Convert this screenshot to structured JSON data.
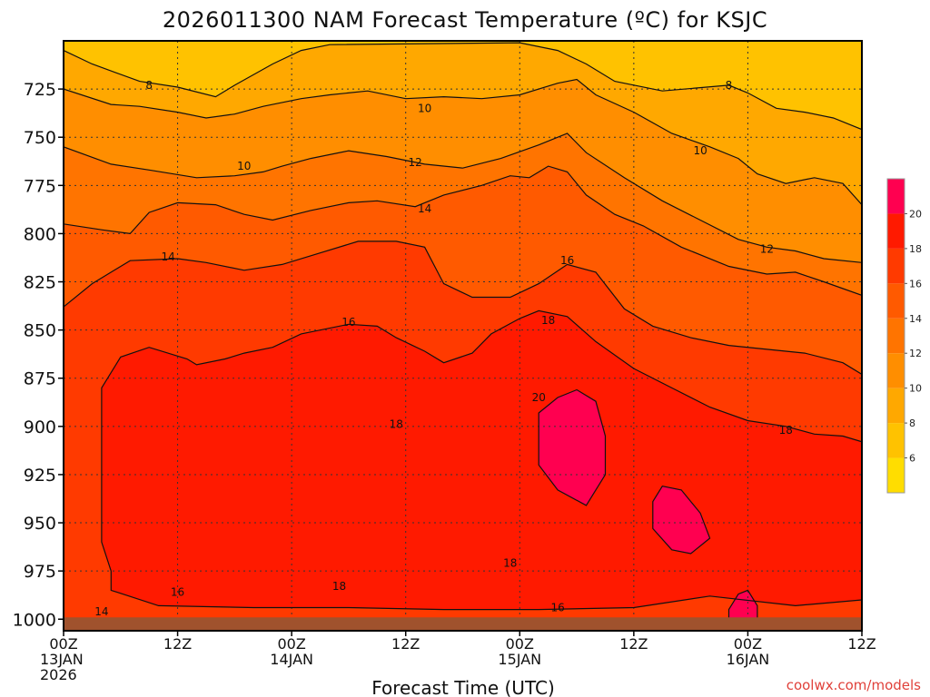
{
  "chart_data": {
    "type": "heatmap",
    "title": "2026011300 NAM Forecast Temperature (ºC) for KSJC",
    "xlabel": "Forecast Time (UTC)",
    "ylabel": "",
    "credit": "coolwx.com/models",
    "x_ticks": [
      {
        "hour": 0,
        "lines": [
          "00Z",
          "13JAN",
          "2026"
        ]
      },
      {
        "hour": 12,
        "lines": [
          "12Z"
        ]
      },
      {
        "hour": 24,
        "lines": [
          "00Z",
          "14JAN"
        ]
      },
      {
        "hour": 36,
        "lines": [
          "12Z"
        ]
      },
      {
        "hour": 48,
        "lines": [
          "00Z",
          "15JAN"
        ]
      },
      {
        "hour": 60,
        "lines": [
          "12Z"
        ]
      },
      {
        "hour": 72,
        "lines": [
          "00Z",
          "16JAN"
        ]
      },
      {
        "hour": 84,
        "lines": [
          "12Z"
        ]
      }
    ],
    "xlim": [
      0,
      84
    ],
    "y_ticks": [
      725,
      750,
      775,
      800,
      825,
      850,
      875,
      900,
      925,
      950,
      975,
      1000
    ],
    "ylim": [
      1006,
      700
    ],
    "ground_pressure_hpa": 1000,
    "contour_interval_c": 2,
    "colorbar": {
      "levels": [
        6,
        8,
        10,
        12,
        14,
        16,
        18,
        20
      ],
      "labels": [
        "6",
        "8",
        "10",
        "12",
        "14",
        "16",
        "18",
        "20"
      ],
      "colors": [
        "#ffdd00",
        "#ffc200",
        "#ffa800",
        "#ff8e00",
        "#ff7400",
        "#ff5a00",
        "#ff3a00",
        "#ff1a00",
        "#ff0050"
      ]
    },
    "contours": [
      {
        "level": 8,
        "points": [
          [
            0,
            705
          ],
          [
            3,
            712
          ],
          [
            8,
            721
          ],
          [
            12,
            724
          ],
          [
            16,
            729
          ],
          [
            18,
            723
          ],
          [
            22,
            712
          ],
          [
            25,
            705
          ],
          [
            28,
            702
          ],
          [
            48,
            701
          ],
          [
            52,
            705
          ],
          [
            55,
            712
          ],
          [
            58,
            721
          ],
          [
            63,
            726
          ],
          [
            70,
            723
          ],
          [
            72,
            727
          ],
          [
            75,
            735
          ],
          [
            78,
            737
          ],
          [
            81,
            740
          ],
          [
            84,
            746
          ]
        ]
      },
      {
        "level": 10,
        "points": [
          [
            0,
            725
          ],
          [
            5,
            733
          ],
          [
            8,
            734
          ],
          [
            12,
            737
          ],
          [
            15,
            740
          ],
          [
            18,
            738
          ],
          [
            21,
            734
          ],
          [
            25,
            730
          ],
          [
            28,
            728
          ],
          [
            32,
            726
          ],
          [
            36,
            730
          ],
          [
            40,
            729
          ],
          [
            44,
            730
          ],
          [
            48,
            728
          ],
          [
            52,
            722
          ],
          [
            54,
            720
          ],
          [
            56,
            728
          ],
          [
            60,
            737
          ],
          [
            64,
            748
          ],
          [
            68,
            755
          ],
          [
            71,
            761
          ],
          [
            73,
            769
          ],
          [
            76,
            774
          ],
          [
            79,
            771
          ],
          [
            82,
            774
          ],
          [
            84,
            785
          ]
        ]
      },
      {
        "level": 12,
        "points": [
          [
            0,
            755
          ],
          [
            5,
            764
          ],
          [
            9,
            767
          ],
          [
            14,
            771
          ],
          [
            18,
            770
          ],
          [
            21,
            768
          ],
          [
            23,
            765
          ],
          [
            26,
            761
          ],
          [
            30,
            757
          ],
          [
            34,
            760
          ],
          [
            38,
            764
          ],
          [
            42,
            766
          ],
          [
            46,
            761
          ],
          [
            50,
            754
          ],
          [
            53,
            748
          ],
          [
            55,
            758
          ],
          [
            59,
            771
          ],
          [
            63,
            783
          ],
          [
            67,
            793
          ],
          [
            71,
            803
          ],
          [
            74,
            807
          ],
          [
            77,
            809
          ],
          [
            80,
            813
          ],
          [
            84,
            815
          ]
        ]
      },
      {
        "level": 14,
        "points": [
          [
            0,
            795
          ],
          [
            4,
            798
          ],
          [
            7,
            800
          ],
          [
            9,
            789
          ],
          [
            12,
            784
          ],
          [
            16,
            785
          ],
          [
            19,
            790
          ],
          [
            22,
            793
          ],
          [
            26,
            788
          ],
          [
            30,
            784
          ],
          [
            33,
            783
          ],
          [
            37,
            786
          ],
          [
            40,
            780
          ],
          [
            44,
            775
          ],
          [
            47,
            770
          ],
          [
            49,
            771
          ],
          [
            51,
            765
          ],
          [
            53,
            768
          ],
          [
            55,
            780
          ],
          [
            58,
            790
          ],
          [
            61,
            796
          ],
          [
            65,
            807
          ],
          [
            70,
            817
          ],
          [
            74,
            821
          ],
          [
            77,
            820
          ],
          [
            80,
            825
          ],
          [
            84,
            832
          ]
        ]
      },
      {
        "level": 16,
        "points": [
          [
            0,
            838
          ],
          [
            3,
            826
          ],
          [
            7,
            814
          ],
          [
            12,
            813
          ],
          [
            15,
            815
          ],
          [
            19,
            819
          ],
          [
            23,
            816
          ],
          [
            27,
            810
          ],
          [
            31,
            804
          ],
          [
            35,
            804
          ],
          [
            38,
            807
          ],
          [
            40,
            826
          ],
          [
            43,
            833
          ],
          [
            47,
            833
          ],
          [
            50,
            826
          ],
          [
            53,
            816
          ],
          [
            56,
            820
          ],
          [
            59,
            839
          ],
          [
            62,
            848
          ],
          [
            66,
            854
          ],
          [
            70,
            858
          ],
          [
            74,
            860
          ],
          [
            78,
            862
          ],
          [
            82,
            867
          ],
          [
            84,
            873
          ]
        ]
      },
      {
        "level": 18,
        "points": [
          [
            5,
            975
          ],
          [
            4,
            960
          ],
          [
            4,
            880
          ],
          [
            6,
            864
          ],
          [
            9,
            859
          ],
          [
            13,
            865
          ],
          [
            14,
            868
          ],
          [
            17,
            865
          ],
          [
            19,
            862
          ],
          [
            22,
            859
          ],
          [
            25,
            852
          ],
          [
            30,
            847
          ],
          [
            33,
            848
          ],
          [
            35,
            854
          ],
          [
            38,
            861
          ],
          [
            40,
            867
          ],
          [
            43,
            862
          ],
          [
            45,
            852
          ],
          [
            48,
            844
          ],
          [
            50,
            840
          ],
          [
            53,
            843
          ],
          [
            56,
            856
          ],
          [
            60,
            870
          ],
          [
            64,
            880
          ],
          [
            68,
            890
          ],
          [
            72,
            897
          ],
          [
            76,
            900
          ],
          [
            79,
            904
          ],
          [
            82,
            905
          ],
          [
            84,
            908
          ],
          [
            84,
            990
          ],
          [
            77,
            993
          ],
          [
            68,
            988
          ],
          [
            60,
            994
          ],
          [
            50,
            995
          ],
          [
            40,
            995
          ],
          [
            30,
            994
          ],
          [
            20,
            994
          ],
          [
            10,
            993
          ],
          [
            5,
            985
          ],
          [
            5,
            975
          ]
        ]
      },
      {
        "level": 20,
        "points": [
          [
            50,
            893
          ],
          [
            52,
            885
          ],
          [
            54,
            881
          ],
          [
            56,
            887
          ],
          [
            57,
            905
          ],
          [
            57,
            925
          ],
          [
            55,
            941
          ],
          [
            52,
            933
          ],
          [
            50,
            920
          ],
          [
            50,
            893
          ]
        ]
      },
      {
        "level": 20,
        "points": [
          [
            62,
            939
          ],
          [
            63,
            931
          ],
          [
            65,
            933
          ],
          [
            67,
            945
          ],
          [
            68,
            958
          ],
          [
            66,
            966
          ],
          [
            64,
            964
          ],
          [
            62,
            953
          ],
          [
            62,
            939
          ]
        ]
      },
      {
        "level": 20,
        "points": [
          [
            70,
            995
          ],
          [
            71,
            987
          ],
          [
            72,
            985
          ],
          [
            73,
            993
          ],
          [
            73,
            1003
          ],
          [
            70,
            1003
          ],
          [
            70,
            995
          ]
        ]
      }
    ],
    "contour_labels": [
      {
        "text": "8",
        "hour": 9,
        "hpa": 723
      },
      {
        "text": "8",
        "hour": 70,
        "hpa": 723
      },
      {
        "text": "10",
        "hour": 19,
        "hpa": 765
      },
      {
        "text": "10",
        "hour": 38,
        "hpa": 735
      },
      {
        "text": "10",
        "hour": 67,
        "hpa": 757
      },
      {
        "text": "12",
        "hour": 37,
        "hpa": 763
      },
      {
        "text": "12",
        "hour": 74,
        "hpa": 808
      },
      {
        "text": "14",
        "hour": 11,
        "hpa": 812
      },
      {
        "text": "14",
        "hour": 38,
        "hpa": 787
      },
      {
        "text": "14",
        "hour": 4,
        "hpa": 996
      },
      {
        "text": "16",
        "hour": 30,
        "hpa": 846
      },
      {
        "text": "16",
        "hour": 53,
        "hpa": 814
      },
      {
        "text": "16",
        "hour": 12,
        "hpa": 986
      },
      {
        "text": "16",
        "hour": 52,
        "hpa": 994
      },
      {
        "text": "18",
        "hour": 51,
        "hpa": 845
      },
      {
        "text": "18",
        "hour": 35,
        "hpa": 899
      },
      {
        "text": "18",
        "hour": 29,
        "hpa": 983
      },
      {
        "text": "18",
        "hour": 47,
        "hpa": 971
      },
      {
        "text": "18",
        "hour": 76,
        "hpa": 902
      },
      {
        "text": "20",
        "hour": 50,
        "hpa": 885
      }
    ]
  }
}
